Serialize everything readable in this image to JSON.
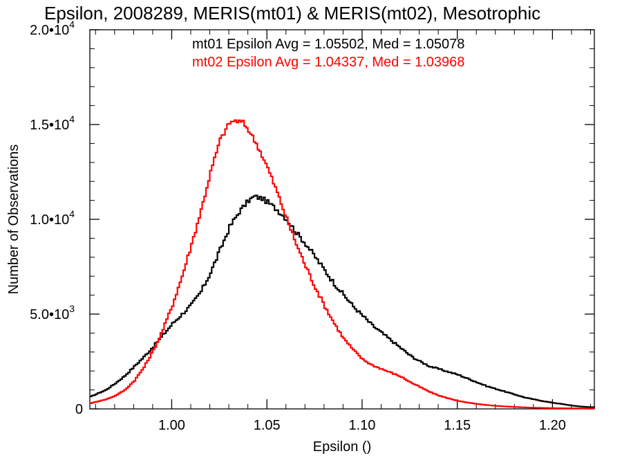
{
  "colors": {
    "mt01": "#000000",
    "mt02": "#ff0000",
    "axes": "#000000"
  },
  "chart_data": {
    "type": "line",
    "title": "Epsilon, 2008289, MERIS(mt01) & MERIS(mt02), Mesotrophic",
    "xlabel": "Epsilon ()",
    "ylabel": "Number of Observations",
    "xlim": [
      0.957,
      1.222
    ],
    "ylim": [
      0,
      20000
    ],
    "grid": false,
    "x_ticks": [
      {
        "value": 1.0,
        "label": "1.00"
      },
      {
        "value": 1.05,
        "label": "1.05"
      },
      {
        "value": 1.1,
        "label": "1.10"
      },
      {
        "value": 1.15,
        "label": "1.15"
      },
      {
        "value": 1.2,
        "label": "1.20"
      }
    ],
    "y_ticks": [
      {
        "value": 0,
        "label": "0",
        "exp": ""
      },
      {
        "value": 5000,
        "label": "5.0•10",
        "exp": "3"
      },
      {
        "value": 10000,
        "label": "1.0•10",
        "exp": "4"
      },
      {
        "value": 15000,
        "label": "1.5•10",
        "exp": "4"
      },
      {
        "value": 20000,
        "label": "2.0•10",
        "exp": "4"
      }
    ],
    "annotations": [
      {
        "text": "mt01 Epsilon Avg = 1.05502, Med = 1.05078",
        "color": "#000000"
      },
      {
        "text": "mt02 Epsilon Avg = 1.04337, Med = 1.03968",
        "color": "#ff0000"
      }
    ],
    "series": [
      {
        "color": "#000000",
        "points": [
          [
            0.957,
            650
          ],
          [
            0.965,
            1000
          ],
          [
            0.97,
            1350
          ],
          [
            0.975,
            1750
          ],
          [
            0.98,
            2250
          ],
          [
            0.985,
            2750
          ],
          [
            0.99,
            3300
          ],
          [
            0.995,
            3900
          ],
          [
            1.0,
            4500
          ],
          [
            1.005,
            5000
          ],
          [
            1.01,
            5500
          ],
          [
            1.015,
            6200
          ],
          [
            1.02,
            7200
          ],
          [
            1.025,
            8400
          ],
          [
            1.03,
            9600
          ],
          [
            1.035,
            10400
          ],
          [
            1.04,
            11000
          ],
          [
            1.043,
            11200
          ],
          [
            1.047,
            11100
          ],
          [
            1.05,
            10900
          ],
          [
            1.055,
            10500
          ],
          [
            1.06,
            10000
          ],
          [
            1.065,
            9300
          ],
          [
            1.07,
            8700
          ],
          [
            1.075,
            8000
          ],
          [
            1.08,
            7300
          ],
          [
            1.085,
            6600
          ],
          [
            1.09,
            6000
          ],
          [
            1.095,
            5400
          ],
          [
            1.1,
            4900
          ],
          [
            1.105,
            4400
          ],
          [
            1.11,
            4000
          ],
          [
            1.115,
            3600
          ],
          [
            1.12,
            3200
          ],
          [
            1.125,
            2800
          ],
          [
            1.13,
            2500
          ],
          [
            1.135,
            2250
          ],
          [
            1.14,
            2100
          ],
          [
            1.145,
            1950
          ],
          [
            1.15,
            1800
          ],
          [
            1.155,
            1600
          ],
          [
            1.16,
            1400
          ],
          [
            1.165,
            1200
          ],
          [
            1.17,
            1050
          ],
          [
            1.175,
            900
          ],
          [
            1.18,
            750
          ],
          [
            1.185,
            600
          ],
          [
            1.19,
            500
          ],
          [
            1.195,
            400
          ],
          [
            1.2,
            320
          ],
          [
            1.205,
            250
          ],
          [
            1.21,
            170
          ],
          [
            1.215,
            120
          ],
          [
            1.222,
            80
          ]
        ]
      },
      {
        "color": "#ff0000",
        "points": [
          [
            0.957,
            300
          ],
          [
            0.965,
            500
          ],
          [
            0.97,
            700
          ],
          [
            0.975,
            1000
          ],
          [
            0.98,
            1500
          ],
          [
            0.985,
            2200
          ],
          [
            0.99,
            3100
          ],
          [
            0.995,
            4200
          ],
          [
            1.0,
            5500
          ],
          [
            1.005,
            7000
          ],
          [
            1.01,
            8700
          ],
          [
            1.015,
            10500
          ],
          [
            1.02,
            12500
          ],
          [
            1.025,
            14200
          ],
          [
            1.03,
            15100
          ],
          [
            1.033,
            15200
          ],
          [
            1.037,
            15100
          ],
          [
            1.04,
            14700
          ],
          [
            1.045,
            13800
          ],
          [
            1.05,
            12700
          ],
          [
            1.055,
            11400
          ],
          [
            1.06,
            10000
          ],
          [
            1.065,
            8700
          ],
          [
            1.07,
            7500
          ],
          [
            1.075,
            6400
          ],
          [
            1.08,
            5400
          ],
          [
            1.085,
            4500
          ],
          [
            1.09,
            3700
          ],
          [
            1.095,
            3100
          ],
          [
            1.1,
            2600
          ],
          [
            1.105,
            2300
          ],
          [
            1.11,
            2100
          ],
          [
            1.115,
            1900
          ],
          [
            1.12,
            1700
          ],
          [
            1.125,
            1400
          ],
          [
            1.13,
            1150
          ],
          [
            1.135,
            900
          ],
          [
            1.14,
            700
          ],
          [
            1.145,
            550
          ],
          [
            1.15,
            420
          ],
          [
            1.155,
            330
          ],
          [
            1.16,
            260
          ],
          [
            1.165,
            200
          ],
          [
            1.17,
            160
          ],
          [
            1.175,
            130
          ],
          [
            1.18,
            100
          ],
          [
            1.185,
            80
          ],
          [
            1.19,
            60
          ],
          [
            1.195,
            50
          ],
          [
            1.2,
            40
          ],
          [
            1.21,
            30
          ],
          [
            1.222,
            20
          ]
        ]
      }
    ]
  }
}
